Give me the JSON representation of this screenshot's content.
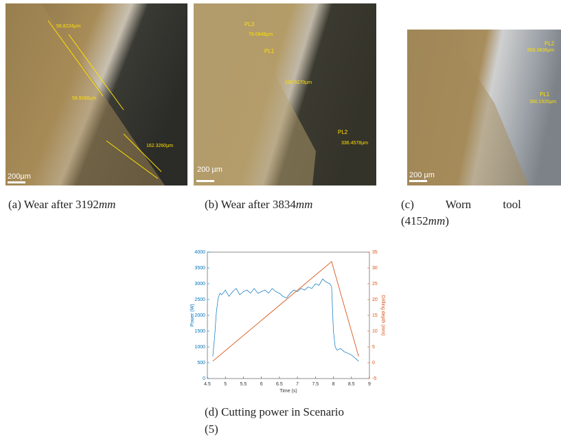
{
  "figures": [
    {
      "caption": [
        "(a) Wear after 3192",
        "mm"
      ],
      "annotations": [
        "58.8224µm",
        "58.9266µm",
        "162.3260µm"
      ],
      "scale_bar": "200µm"
    },
    {
      "caption": [
        "(b) Wear after 3834",
        "mm"
      ],
      "annotations": [
        "PL3",
        "78.0848µm",
        "PL1",
        "100.5270µm",
        "PL2",
        "336.4578µm"
      ],
      "scale_bar": "200 µm"
    },
    {
      "caption": [
        "(c) Worn tool",
        "(4152",
        "mm",
        ")"
      ],
      "annotations": [
        "PL2",
        "859.3836µm",
        "PL1",
        "390.1526µm"
      ],
      "scale_bar": "200 µm"
    }
  ],
  "chart_data": {
    "type": "line",
    "xlabel": "Time (s)",
    "ylabel": "Power (W)",
    "y2label": "Drilling depth (mm)",
    "xlim": [
      4.5,
      9
    ],
    "xticks": [
      4.5,
      5,
      5.5,
      6,
      6.5,
      7,
      7.5,
      8,
      8.5,
      9
    ],
    "ylim": [
      0,
      4000
    ],
    "yticks": [
      0,
      500,
      1000,
      1500,
      2000,
      2500,
      3000,
      3500,
      4000
    ],
    "y2lim": [
      -5,
      35
    ],
    "y2ticks": [
      -5,
      0,
      5,
      10,
      15,
      20,
      25,
      30,
      35
    ],
    "series": [
      {
        "color": "#0072bd",
        "x": [
          4.65,
          4.7,
          4.75,
          4.8,
          4.85,
          4.9,
          5.0,
          5.1,
          5.2,
          5.3,
          5.4,
          5.5,
          5.6,
          5.7,
          5.8,
          5.9,
          6.0,
          6.1,
          6.2,
          6.3,
          6.4,
          6.5,
          6.6,
          6.7,
          6.8,
          6.9,
          7.0,
          7.1,
          7.2,
          7.3,
          7.4,
          7.5,
          7.6,
          7.7,
          7.8,
          7.9,
          7.95,
          8.0,
          8.05,
          8.1,
          8.2,
          8.3,
          8.4,
          8.5,
          8.6,
          8.7
        ],
        "values": [
          700,
          1300,
          2100,
          2550,
          2700,
          2650,
          2800,
          2600,
          2750,
          2850,
          2650,
          2750,
          2800,
          2700,
          2850,
          2700,
          2750,
          2800,
          2700,
          2850,
          2750,
          2700,
          2600,
          2550,
          2700,
          2800,
          2750,
          2850,
          2800,
          2900,
          2850,
          3000,
          2950,
          3150,
          3050,
          3000,
          2900,
          1500,
          1000,
          900,
          950,
          850,
          800,
          750,
          650,
          550
        ]
      },
      {
        "color": "#d95319",
        "axis": "y2",
        "x": [
          4.65,
          7.95,
          8.7
        ],
        "values": [
          0.5,
          32,
          2
        ]
      }
    ]
  },
  "chart_caption": [
    "(d) Cutting power in Scenario",
    "(5)"
  ]
}
